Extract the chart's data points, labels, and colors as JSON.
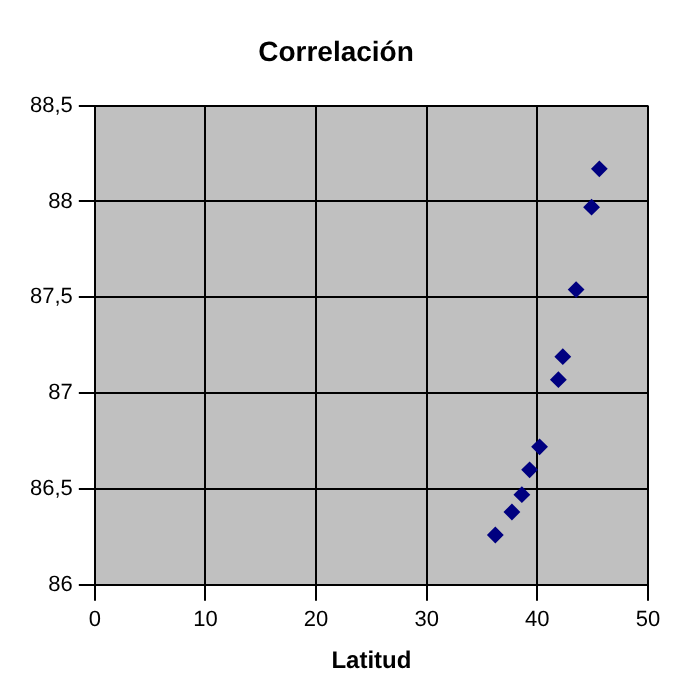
{
  "chart_data": {
    "type": "scatter",
    "title": "Correlación",
    "xlabel": "Latitud",
    "x": [
      36.2,
      37.7,
      38.6,
      39.3,
      40.2,
      41.9,
      42.3,
      43.5,
      44.9,
      45.6
    ],
    "values": [
      86.26,
      86.38,
      86.47,
      86.6,
      86.72,
      87.07,
      87.19,
      87.54,
      87.97,
      88.17
    ],
    "color": "#000080",
    "marker": "diamond",
    "grid": true,
    "legend": false,
    "xlim": [
      0,
      50
    ],
    "xticks": [
      0,
      10,
      20,
      30,
      40,
      50
    ],
    "ylim": [
      86,
      88.5
    ],
    "yticks": [
      {
        "value": 86,
        "label": "86"
      },
      {
        "value": 86.5,
        "label": "86,5"
      },
      {
        "value": 87,
        "label": "87"
      },
      {
        "value": 87.5,
        "label": "87,5"
      },
      {
        "value": 88,
        "label": "88"
      },
      {
        "value": 88.5,
        "label": "88,5"
      }
    ]
  }
}
